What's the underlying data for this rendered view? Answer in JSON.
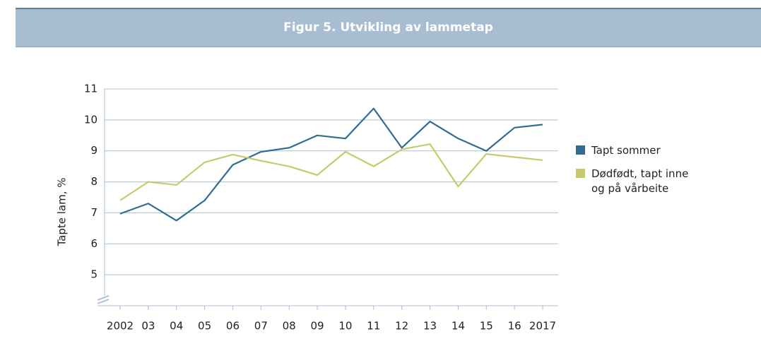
{
  "chart_data": {
    "type": "line",
    "title": "Figur 5. Utvikling av lammetap",
    "y_label": "Tapte lam, %",
    "categories": [
      "2002",
      "03",
      "04",
      "05",
      "06",
      "07",
      "08",
      "09",
      "10",
      "11",
      "12",
      "13",
      "14",
      "15",
      "16",
      "2017"
    ],
    "series": [
      {
        "name": "Tapt sommer",
        "color": "#2f6c8f",
        "values": [
          6.97,
          7.3,
          6.75,
          7.4,
          8.55,
          8.97,
          9.1,
          9.5,
          9.4,
          10.37,
          9.1,
          9.95,
          9.4,
          9.0,
          9.75,
          9.85
        ]
      },
      {
        "name": "Dødfødt, tapt inne og på vårbeite",
        "color": "#c6ca6b",
        "values": [
          7.4,
          8.0,
          7.9,
          8.63,
          8.88,
          8.68,
          8.5,
          8.22,
          8.97,
          8.5,
          9.05,
          9.22,
          7.85,
          8.9,
          8.8,
          8.7
        ]
      }
    ],
    "ylim": [
      4,
      11
    ],
    "yticks": [
      5,
      6,
      7,
      8,
      9,
      10,
      11
    ],
    "grid": true
  }
}
